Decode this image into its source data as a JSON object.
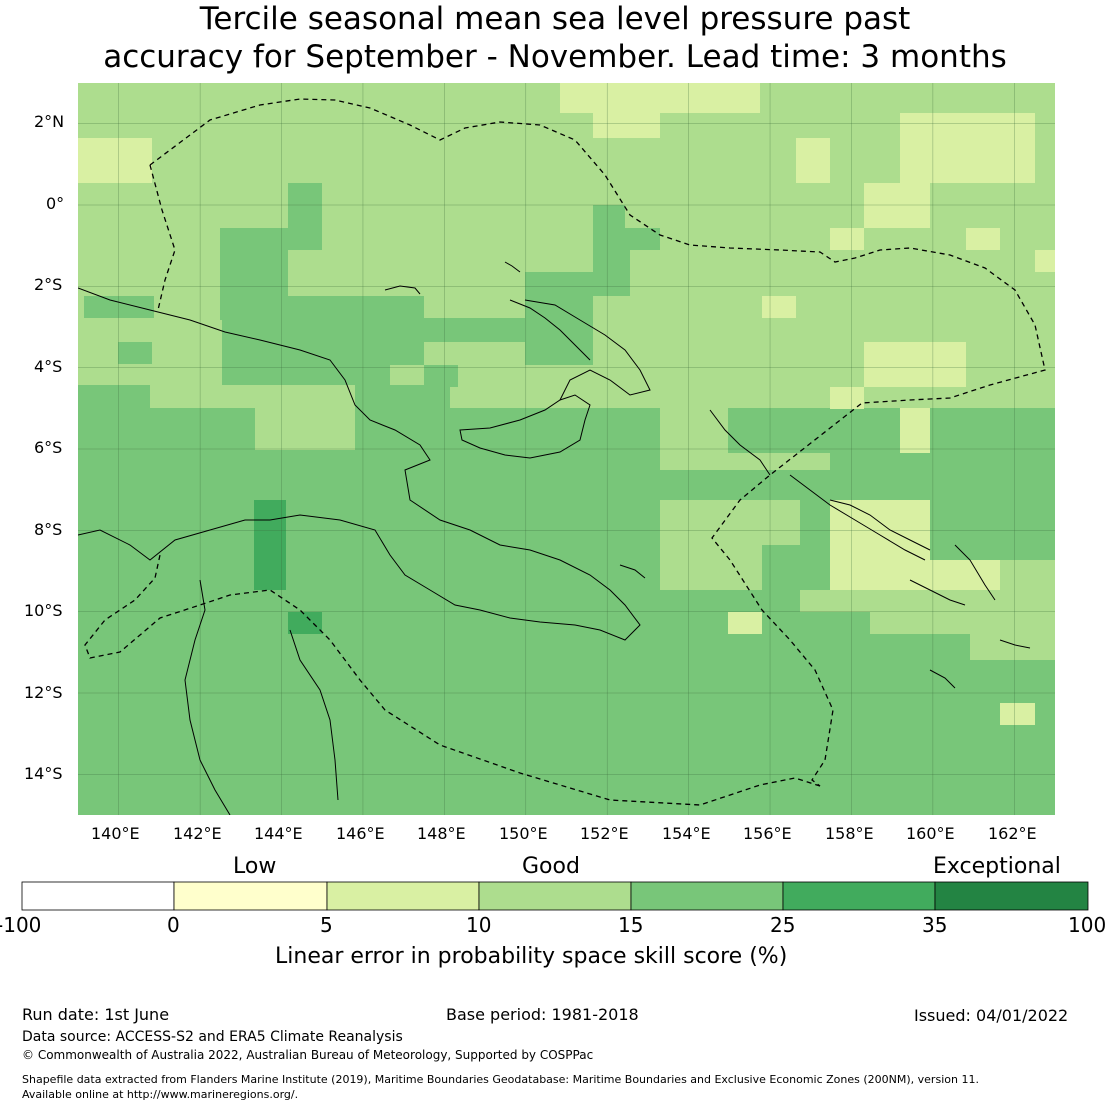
{
  "title": {
    "line1": "Tercile seasonal mean sea level pressure past",
    "line2": "accuracy for September - November. Lead time: 3 months"
  },
  "map": {
    "lat_labels": [
      "2°N",
      "0°",
      "2°S",
      "4°S",
      "6°S",
      "8°S",
      "10°S",
      "12°S",
      "14°S"
    ],
    "lon_labels": [
      "140°E",
      "142°E",
      "144°E",
      "146°E",
      "148°E",
      "150°E",
      "152°E",
      "154°E",
      "156°E",
      "158°E",
      "160°E",
      "162°E"
    ],
    "lon_range": [
      139,
      163
    ],
    "lat_range": [
      -15,
      3
    ],
    "skill_grid_note": "",
    "boundary_style": "dashed",
    "colors": {
      "ocean_good": "#79c679",
      "land_good": "#addd8e",
      "fair": "#d9f0a3",
      "very_good": "#41ab5d"
    }
  },
  "colorbar": {
    "categories": [
      "Low",
      "Good",
      "Exceptional"
    ],
    "ticks": [
      "-100",
      "0",
      "5",
      "10",
      "15",
      "25",
      "35",
      "100"
    ],
    "colors": [
      "#ffffff",
      "#ffffcc",
      "#d9f0a3",
      "#addd8e",
      "#78c679",
      "#41ab5d",
      "#238443"
    ],
    "label": "Linear error in probability space skill score (%)"
  },
  "footer": {
    "run_date": "Run date: 1st June",
    "base_period": "Base period: 1981-2018",
    "issued": "Issued: 04/01/2022",
    "data_source": "Data source: ACCESS-S2 and ERA5 Climate Reanalysis",
    "copyright": "© Commonwealth of Australia 2022, Australian Bureau of Meteorology, Supported by COSPPac",
    "shapefile_line1": "Shapefile data extracted from Flanders Marine Institute (2019), Maritime Boundaries Geodatabase: Maritime Boundaries and Exclusive Economic Zones (200NM), version 11.",
    "shapefile_line2": "Available online at http://www.marineregions.org/."
  }
}
